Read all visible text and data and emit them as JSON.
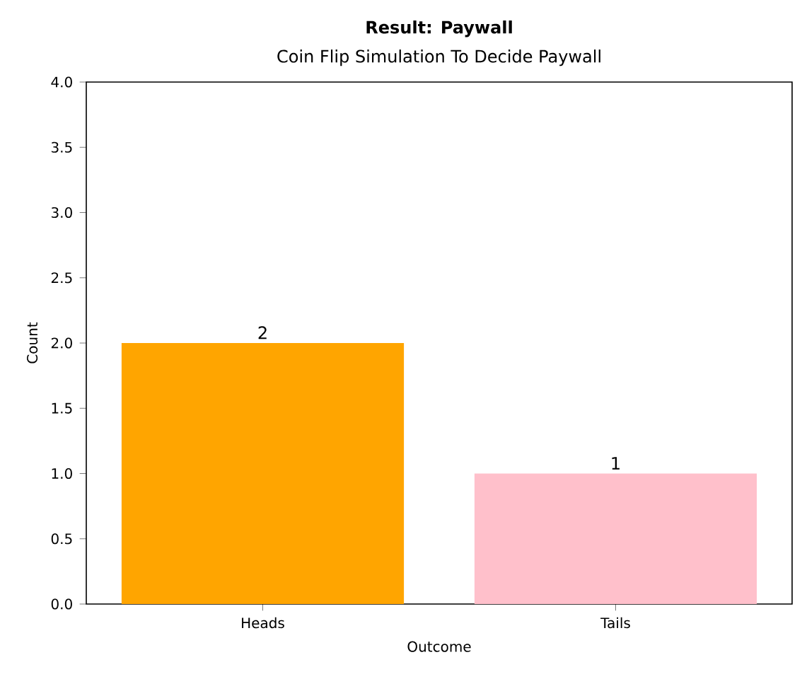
{
  "chart_data": {
    "type": "bar",
    "title": "Result: Paywall",
    "subtitle": "Coin Flip Simulation To Decide Paywall",
    "xlabel": "Outcome",
    "ylabel": "Count",
    "categories": [
      "Heads",
      "Tails"
    ],
    "values": [
      2,
      1
    ],
    "colors": [
      "#ffa500",
      "#ffc0cb"
    ],
    "ylim": [
      0,
      4
    ],
    "yticks": [
      {
        "value": 0,
        "label": "0.0"
      },
      {
        "value": 0.5,
        "label": "0.5"
      },
      {
        "value": 1,
        "label": "1.0"
      },
      {
        "value": 1.5,
        "label": "1.5"
      },
      {
        "value": 2,
        "label": "2.0"
      },
      {
        "value": 2.5,
        "label": "2.5"
      },
      {
        "value": 3,
        "label": "3.0"
      },
      {
        "value": 3.5,
        "label": "3.5"
      },
      {
        "value": 4,
        "label": "4.0"
      }
    ],
    "data_labels": true,
    "grid": false
  }
}
